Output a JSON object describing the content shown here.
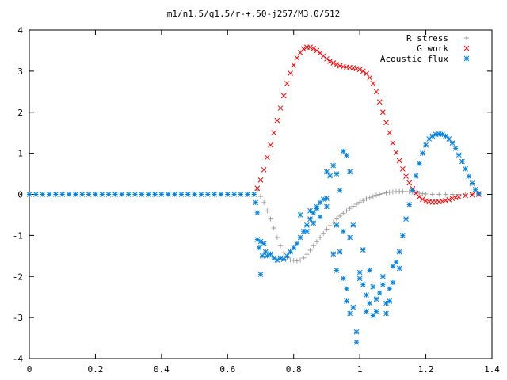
{
  "chart_data": {
    "type": "scatter",
    "title": "m1/n1.5/q1.5/r-+.50-j257/M3.0/512",
    "xlabel": "",
    "ylabel": "",
    "xlim": [
      0,
      1.4
    ],
    "ylim": [
      -4,
      4
    ],
    "x_ticks": [
      "0",
      "0.2",
      "0.4",
      "0.6",
      "0.8",
      "1",
      "1.2",
      "1.4"
    ],
    "y_ticks": [
      "4",
      "3",
      "2",
      "1",
      "0",
      "-1",
      "-2",
      "-3",
      "-4"
    ],
    "grid": false,
    "legend_position": "top-right",
    "series": [
      {
        "name": "R stress",
        "marker": "plus",
        "color": "#a0a0a0",
        "points": [
          [
            0.69,
            0.1
          ],
          [
            0.7,
            -0.05
          ],
          [
            0.71,
            -0.2
          ],
          [
            0.72,
            -0.4
          ],
          [
            0.73,
            -0.6
          ],
          [
            0.74,
            -0.82
          ],
          [
            0.75,
            -1.05
          ],
          [
            0.76,
            -1.25
          ],
          [
            0.77,
            -1.42
          ],
          [
            0.78,
            -1.54
          ],
          [
            0.79,
            -1.6
          ],
          [
            0.8,
            -1.61
          ],
          [
            0.81,
            -1.62
          ],
          [
            0.82,
            -1.6
          ],
          [
            0.83,
            -1.55
          ],
          [
            0.84,
            -1.46
          ],
          [
            0.85,
            -1.36
          ],
          [
            0.86,
            -1.25
          ],
          [
            0.87,
            -1.15
          ],
          [
            0.88,
            -1.05
          ],
          [
            0.89,
            -0.95
          ],
          [
            0.9,
            -0.85
          ],
          [
            0.91,
            -0.76
          ],
          [
            0.92,
            -0.68
          ],
          [
            0.93,
            -0.6
          ],
          [
            0.94,
            -0.53
          ],
          [
            0.95,
            -0.46
          ],
          [
            0.96,
            -0.4
          ],
          [
            0.97,
            -0.34
          ],
          [
            0.98,
            -0.29
          ],
          [
            0.99,
            -0.24
          ],
          [
            1.0,
            -0.19
          ],
          [
            1.01,
            -0.15
          ],
          [
            1.02,
            -0.11
          ],
          [
            1.03,
            -0.08
          ],
          [
            1.04,
            -0.05
          ],
          [
            1.05,
            -0.02
          ],
          [
            1.06,
            0.0
          ],
          [
            1.07,
            0.02
          ],
          [
            1.08,
            0.04
          ],
          [
            1.09,
            0.05
          ],
          [
            1.1,
            0.06
          ],
          [
            1.11,
            0.07
          ],
          [
            1.12,
            0.07
          ],
          [
            1.13,
            0.07
          ],
          [
            1.14,
            0.07
          ],
          [
            1.15,
            0.06
          ],
          [
            1.16,
            0.05
          ],
          [
            1.17,
            0.04
          ],
          [
            1.18,
            0.03
          ],
          [
            1.19,
            0.02
          ],
          [
            1.2,
            0.01
          ],
          [
            1.22,
            0.0
          ],
          [
            1.24,
            0.0
          ],
          [
            1.26,
            0.0
          ],
          [
            1.28,
            0.0
          ],
          [
            1.3,
            0.0
          ],
          [
            1.32,
            0.0
          ],
          [
            1.34,
            0.0
          ],
          [
            1.36,
            0.0
          ]
        ]
      },
      {
        "name": "G work",
        "marker": "cross",
        "color": "#ff0000",
        "points": [
          [
            0.69,
            0.15
          ],
          [
            0.7,
            0.35
          ],
          [
            0.71,
            0.6
          ],
          [
            0.72,
            0.9
          ],
          [
            0.73,
            1.2
          ],
          [
            0.74,
            1.5
          ],
          [
            0.75,
            1.8
          ],
          [
            0.76,
            2.1
          ],
          [
            0.77,
            2.4
          ],
          [
            0.78,
            2.7
          ],
          [
            0.79,
            2.95
          ],
          [
            0.8,
            3.15
          ],
          [
            0.81,
            3.32
          ],
          [
            0.82,
            3.45
          ],
          [
            0.83,
            3.54
          ],
          [
            0.84,
            3.58
          ],
          [
            0.85,
            3.58
          ],
          [
            0.86,
            3.55
          ],
          [
            0.87,
            3.5
          ],
          [
            0.88,
            3.44
          ],
          [
            0.89,
            3.37
          ],
          [
            0.9,
            3.3
          ],
          [
            0.91,
            3.24
          ],
          [
            0.92,
            3.2
          ],
          [
            0.93,
            3.16
          ],
          [
            0.94,
            3.13
          ],
          [
            0.95,
            3.11
          ],
          [
            0.96,
            3.1
          ],
          [
            0.97,
            3.09
          ],
          [
            0.98,
            3.08
          ],
          [
            0.99,
            3.06
          ],
          [
            1.0,
            3.04
          ],
          [
            1.01,
            3.0
          ],
          [
            1.02,
            2.94
          ],
          [
            1.03,
            2.84
          ],
          [
            1.04,
            2.7
          ],
          [
            1.05,
            2.5
          ],
          [
            1.06,
            2.25
          ],
          [
            1.07,
            2.0
          ],
          [
            1.08,
            1.75
          ],
          [
            1.09,
            1.5
          ],
          [
            1.1,
            1.25
          ],
          [
            1.11,
            1.02
          ],
          [
            1.12,
            0.82
          ],
          [
            1.13,
            0.62
          ],
          [
            1.14,
            0.44
          ],
          [
            1.15,
            0.28
          ],
          [
            1.16,
            0.14
          ],
          [
            1.17,
            0.03
          ],
          [
            1.18,
            -0.06
          ],
          [
            1.19,
            -0.12
          ],
          [
            1.2,
            -0.16
          ],
          [
            1.21,
            -0.18
          ],
          [
            1.22,
            -0.19
          ],
          [
            1.23,
            -0.19
          ],
          [
            1.24,
            -0.18
          ],
          [
            1.25,
            -0.17
          ],
          [
            1.26,
            -0.15
          ],
          [
            1.27,
            -0.13
          ],
          [
            1.28,
            -0.1
          ],
          [
            1.29,
            -0.08
          ],
          [
            1.3,
            -0.06
          ],
          [
            1.32,
            -0.03
          ],
          [
            1.34,
            -0.01
          ],
          [
            1.36,
            0.0
          ]
        ]
      },
      {
        "name": "Acoustic flux",
        "marker": "star",
        "color": "#0080e0",
        "points": [
          [
            0.0,
            0.0
          ],
          [
            0.02,
            0.0
          ],
          [
            0.04,
            0.0
          ],
          [
            0.06,
            0.0
          ],
          [
            0.08,
            0.0
          ],
          [
            0.1,
            0.0
          ],
          [
            0.12,
            0.0
          ],
          [
            0.14,
            0.0
          ],
          [
            0.16,
            0.0
          ],
          [
            0.18,
            0.0
          ],
          [
            0.2,
            0.0
          ],
          [
            0.22,
            0.0
          ],
          [
            0.24,
            0.0
          ],
          [
            0.26,
            0.0
          ],
          [
            0.28,
            0.0
          ],
          [
            0.3,
            0.0
          ],
          [
            0.32,
            0.0
          ],
          [
            0.34,
            0.0
          ],
          [
            0.36,
            0.0
          ],
          [
            0.38,
            0.0
          ],
          [
            0.4,
            0.0
          ],
          [
            0.42,
            0.0
          ],
          [
            0.44,
            0.0
          ],
          [
            0.46,
            0.0
          ],
          [
            0.48,
            0.0
          ],
          [
            0.5,
            0.0
          ],
          [
            0.52,
            0.0
          ],
          [
            0.54,
            0.0
          ],
          [
            0.56,
            0.0
          ],
          [
            0.58,
            0.0
          ],
          [
            0.6,
            0.0
          ],
          [
            0.62,
            0.0
          ],
          [
            0.64,
            0.0
          ],
          [
            0.66,
            0.0
          ],
          [
            0.68,
            0.0
          ],
          [
            0.685,
            -0.2
          ],
          [
            0.69,
            -0.45
          ],
          [
            0.69,
            -1.1
          ],
          [
            0.695,
            -1.3
          ],
          [
            0.7,
            -1.15
          ],
          [
            0.7,
            -1.95
          ],
          [
            0.705,
            -1.5
          ],
          [
            0.71,
            -1.2
          ],
          [
            0.715,
            -1.4
          ],
          [
            0.72,
            -1.5
          ],
          [
            0.73,
            -1.45
          ],
          [
            0.74,
            -1.55
          ],
          [
            0.75,
            -1.6
          ],
          [
            0.76,
            -1.55
          ],
          [
            0.77,
            -1.58
          ],
          [
            0.78,
            -1.5
          ],
          [
            0.79,
            -1.4
          ],
          [
            0.8,
            -1.3
          ],
          [
            0.81,
            -1.2
          ],
          [
            0.82,
            -1.05
          ],
          [
            0.83,
            -0.9
          ],
          [
            0.84,
            -0.75
          ],
          [
            0.85,
            -0.6
          ],
          [
            0.86,
            -0.45
          ],
          [
            0.87,
            -0.3
          ],
          [
            0.88,
            -0.2
          ],
          [
            0.89,
            -0.12
          ],
          [
            0.9,
            -0.1
          ],
          [
            0.82,
            -0.5
          ],
          [
            0.84,
            -0.9
          ],
          [
            0.85,
            -0.4
          ],
          [
            0.86,
            -0.7
          ],
          [
            0.87,
            -0.35
          ],
          [
            0.88,
            -0.55
          ],
          [
            0.9,
            -0.3
          ],
          [
            0.9,
            0.55
          ],
          [
            0.91,
            0.45
          ],
          [
            0.92,
            0.7
          ],
          [
            0.93,
            0.5
          ],
          [
            0.95,
            1.05
          ],
          [
            0.96,
            0.95
          ],
          [
            0.97,
            0.55
          ],
          [
            0.94,
            0.1
          ],
          [
            0.93,
            -0.75
          ],
          [
            0.92,
            -1.45
          ],
          [
            0.93,
            -1.85
          ],
          [
            0.94,
            -1.4
          ],
          [
            0.95,
            -0.9
          ],
          [
            0.95,
            -2.05
          ],
          [
            0.96,
            -2.3
          ],
          [
            0.96,
            -2.6
          ],
          [
            0.97,
            -2.9
          ],
          [
            0.97,
            -1.05
          ],
          [
            0.98,
            -0.75
          ],
          [
            0.98,
            -2.75
          ],
          [
            0.99,
            -3.35
          ],
          [
            0.99,
            -3.6
          ],
          [
            1.0,
            -2.05
          ],
          [
            1.0,
            -1.9
          ],
          [
            1.01,
            -2.2
          ],
          [
            1.01,
            -1.35
          ],
          [
            1.02,
            -2.45
          ],
          [
            1.02,
            -2.85
          ],
          [
            1.03,
            -2.65
          ],
          [
            1.03,
            -1.85
          ],
          [
            1.04,
            -2.25
          ],
          [
            1.04,
            -2.95
          ],
          [
            1.05,
            -2.55
          ],
          [
            1.05,
            -2.85
          ],
          [
            1.06,
            -2.4
          ],
          [
            1.07,
            -2.0
          ],
          [
            1.07,
            -2.2
          ],
          [
            1.08,
            -2.65
          ],
          [
            1.08,
            -2.9
          ],
          [
            1.09,
            -2.3
          ],
          [
            1.09,
            -2.6
          ],
          [
            1.1,
            -2.15
          ],
          [
            1.1,
            -1.75
          ],
          [
            1.11,
            -1.65
          ],
          [
            1.12,
            -1.8
          ],
          [
            1.12,
            -1.4
          ],
          [
            1.13,
            -1.0
          ],
          [
            1.14,
            -0.6
          ],
          [
            1.15,
            -0.25
          ],
          [
            1.16,
            0.1
          ],
          [
            1.17,
            0.45
          ],
          [
            1.18,
            0.75
          ],
          [
            1.19,
            1.0
          ],
          [
            1.2,
            1.2
          ],
          [
            1.21,
            1.35
          ],
          [
            1.22,
            1.42
          ],
          [
            1.23,
            1.46
          ],
          [
            1.24,
            1.47
          ],
          [
            1.25,
            1.46
          ],
          [
            1.26,
            1.42
          ],
          [
            1.27,
            1.35
          ],
          [
            1.28,
            1.25
          ],
          [
            1.29,
            1.12
          ],
          [
            1.3,
            0.96
          ],
          [
            1.31,
            0.8
          ],
          [
            1.32,
            0.62
          ],
          [
            1.33,
            0.44
          ],
          [
            1.34,
            0.27
          ],
          [
            1.35,
            0.12
          ],
          [
            1.36,
            0.02
          ]
        ]
      }
    ]
  }
}
